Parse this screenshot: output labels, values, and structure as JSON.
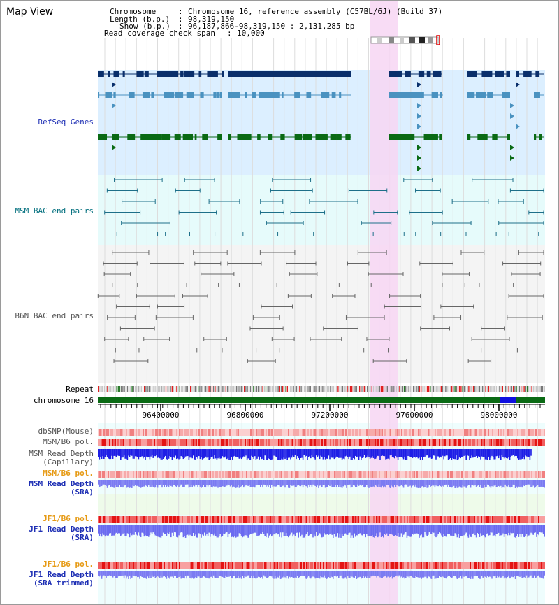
{
  "page": {
    "title": "Map View"
  },
  "header": {
    "chromosome_key": "Chromosome",
    "chromosome_value": "Chromosome 16, reference assembly (C57BL/6J) (Build 37)",
    "length_key": "Length (b.p.)",
    "length_value": "98,319,150",
    "show_key": "Show (b.p.)",
    "show_value": "96,187,866-98,319,150 : 2,131,285 bp",
    "coverage_key": "Read coverage check span",
    "coverage_value": "10,000",
    "separator": ":"
  },
  "tracks": {
    "refseq": "RefSeq Genes",
    "msm_bac": "MSM BAC end pairs",
    "b6n_bac": "B6N BAC end pairs",
    "repeat": "Repeat",
    "chromosome": "chromosome 16",
    "dbsnp": "dbSNP(Mouse)",
    "msm_b6_pol": "MSM/B6 pol.",
    "msm_depth_cap_1": "MSM Read Depth",
    "msm_depth_cap_2": "(Capillary)",
    "msm_b6_pol_2": "MSM/B6 pol.",
    "msm_depth_sra_1": "MSM Read Depth",
    "msm_depth_sra_2": "(SRA)",
    "jf1_b6_pol": "JF1/B6 pol.",
    "jf1_depth_sra_1": "JF1 Read Depth",
    "jf1_depth_sra_2": "(SRA)",
    "jf1_b6_pol_2": "JF1/B6 pol.",
    "jf1_depth_trim_1": "JF1 Read Depth",
    "jf1_depth_trim_2": "(SRA trimmed)"
  },
  "axis": {
    "ticks": [
      "96400000",
      "96800000",
      "97200000",
      "97600000",
      "98000000"
    ]
  },
  "colors": {
    "refseq_bg": "#dcefff",
    "msm_bg": "#e6fbfb",
    "highlight": "#f7d6f3",
    "refseq_dark": "#0a2f6b",
    "refseq_mid": "#4a92c0",
    "refseq_green": "#0a6a14",
    "msm_line": "#1d6f89",
    "b6n_line": "#666666",
    "label_blue": "#1e2fb4",
    "label_teal": "#006e7d",
    "label_orange": "#e69a14",
    "label_gray": "#555555",
    "depth_blue": "#1e1ee6",
    "depth_light": "#7b7bf2"
  }
}
